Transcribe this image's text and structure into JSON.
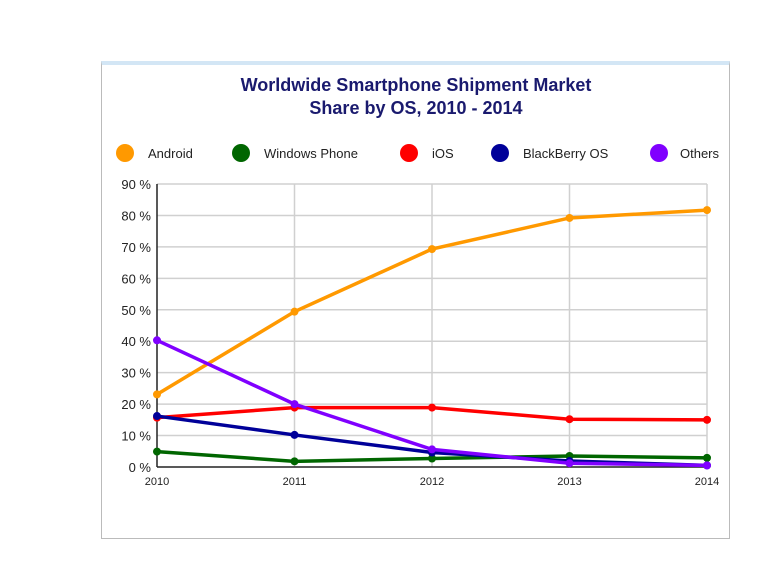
{
  "chart_data": {
    "type": "line",
    "title_line1": "Worldwide Smartphone Shipment Market",
    "title_line2": "Share by OS, 2010 - 2014",
    "x": [
      "2010",
      "2011",
      "2012",
      "2013",
      "2014"
    ],
    "ylim": [
      0,
      90
    ],
    "yticks": [
      "0 %",
      "10 %",
      "20 %",
      "30 %",
      "40 %",
      "50 %",
      "60 %",
      "70 %",
      "80 %",
      "90 %"
    ],
    "grid": true,
    "legend_position": "top",
    "series": [
      {
        "name": "Android",
        "color": "#ff9900",
        "values": [
          23.1,
          49.4,
          69.3,
          79.2,
          81.7
        ]
      },
      {
        "name": "Windows Phone",
        "color": "#006600",
        "values": [
          4.9,
          1.8,
          2.7,
          3.5,
          2.9
        ]
      },
      {
        "name": "iOS",
        "color": "#ff0000",
        "values": [
          15.7,
          18.9,
          18.9,
          15.2,
          15.0
        ]
      },
      {
        "name": "BlackBerry OS",
        "color": "#000099",
        "values": [
          16.2,
          10.2,
          4.6,
          1.9,
          0.5
        ]
      },
      {
        "name": "Others",
        "color": "#8000ff",
        "values": [
          40.3,
          20.0,
          5.6,
          1.2,
          0.5
        ]
      }
    ]
  }
}
